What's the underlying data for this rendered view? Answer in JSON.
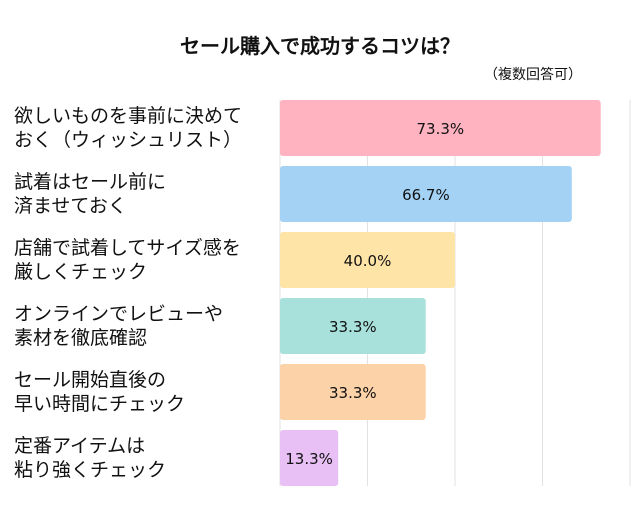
{
  "chart_data": {
    "type": "bar",
    "orientation": "horizontal",
    "title": "セール購入で成功するコツは？",
    "subtitle": "（複数回答可）",
    "categories": [
      "欲しいものを事前に決めて\nおく（ウィッシュリスト）",
      "試着はセール前に\n済ませておく",
      "店舗で試着してサイズ感を\n厳しくチェック",
      "オンラインでレビューや\n素材を徹底確認",
      "セール開始直後の\n早い時間にチェック",
      "定番アイテムは\n粘り強くチェック"
    ],
    "values": [
      73.3,
      66.7,
      40.0,
      33.3,
      33.3,
      13.3
    ],
    "data_labels": [
      "73.3%",
      "66.7%",
      "40.0%",
      "33.3%",
      "33.3%",
      "13.3%"
    ],
    "colors": [
      "#ffb3c1",
      "#a3d2f5",
      "#ffe4a8",
      "#a8e0dc",
      "#fcd2a8",
      "#e8c0f5"
    ],
    "xlim": [
      0,
      80
    ],
    "grid": true,
    "unit": "%"
  }
}
